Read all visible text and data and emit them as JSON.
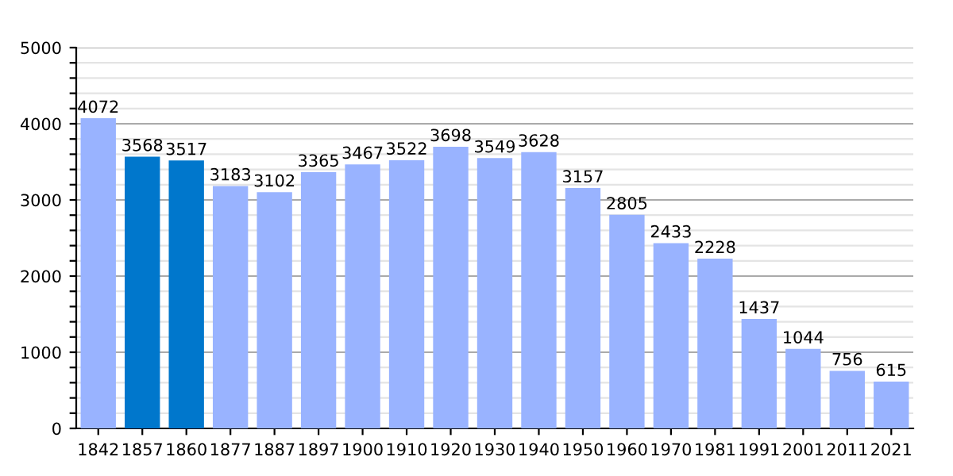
{
  "chart_data": {
    "type": "bar",
    "categories": [
      "1842",
      "1857",
      "1860",
      "1877",
      "1887",
      "1897",
      "1900",
      "1910",
      "1920",
      "1930",
      "1940",
      "1950",
      "1960",
      "1970",
      "1981",
      "1991",
      "2001",
      "2011",
      "2021"
    ],
    "values": [
      4072,
      3568,
      3517,
      3183,
      3102,
      3365,
      3467,
      3522,
      3698,
      3549,
      3628,
      3157,
      2805,
      2433,
      2228,
      1437,
      1044,
      756,
      615
    ],
    "colors": [
      "#99b3ff",
      "#0077cc",
      "#0077cc",
      "#99b3ff",
      "#99b3ff",
      "#99b3ff",
      "#99b3ff",
      "#99b3ff",
      "#99b3ff",
      "#99b3ff",
      "#99b3ff",
      "#99b3ff",
      "#99b3ff",
      "#99b3ff",
      "#99b3ff",
      "#99b3ff",
      "#99b3ff",
      "#99b3ff",
      "#99b3ff"
    ],
    "ylim": [
      0,
      5000
    ],
    "yticks": [
      0,
      {
        "value": 200,
        "label": null
      },
      {
        "value": 400,
        "label": null
      },
      {
        "value": 600,
        "label": null
      },
      {
        "value": 800,
        "label": null
      },
      1000,
      {
        "value": 1200,
        "label": null
      },
      {
        "value": 1400,
        "label": null
      },
      {
        "value": 1600,
        "label": null
      },
      {
        "value": 1800,
        "label": null
      },
      2000,
      {
        "value": 2200,
        "label": null
      },
      {
        "value": 2400,
        "label": null
      },
      {
        "value": 2600,
        "label": null
      },
      {
        "value": 2800,
        "label": null
      },
      3000,
      {
        "value": 3200,
        "label": null
      },
      {
        "value": 3400,
        "label": null
      },
      {
        "value": 3600,
        "label": null
      },
      {
        "value": 3800,
        "label": null
      },
      4000,
      {
        "value": 4200,
        "label": null
      },
      {
        "value": 4400,
        "label": null
      },
      {
        "value": 4600,
        "label": null
      },
      {
        "value": 4800,
        "label": null
      },
      5000
    ],
    "grid": "y",
    "data_labels": true
  }
}
